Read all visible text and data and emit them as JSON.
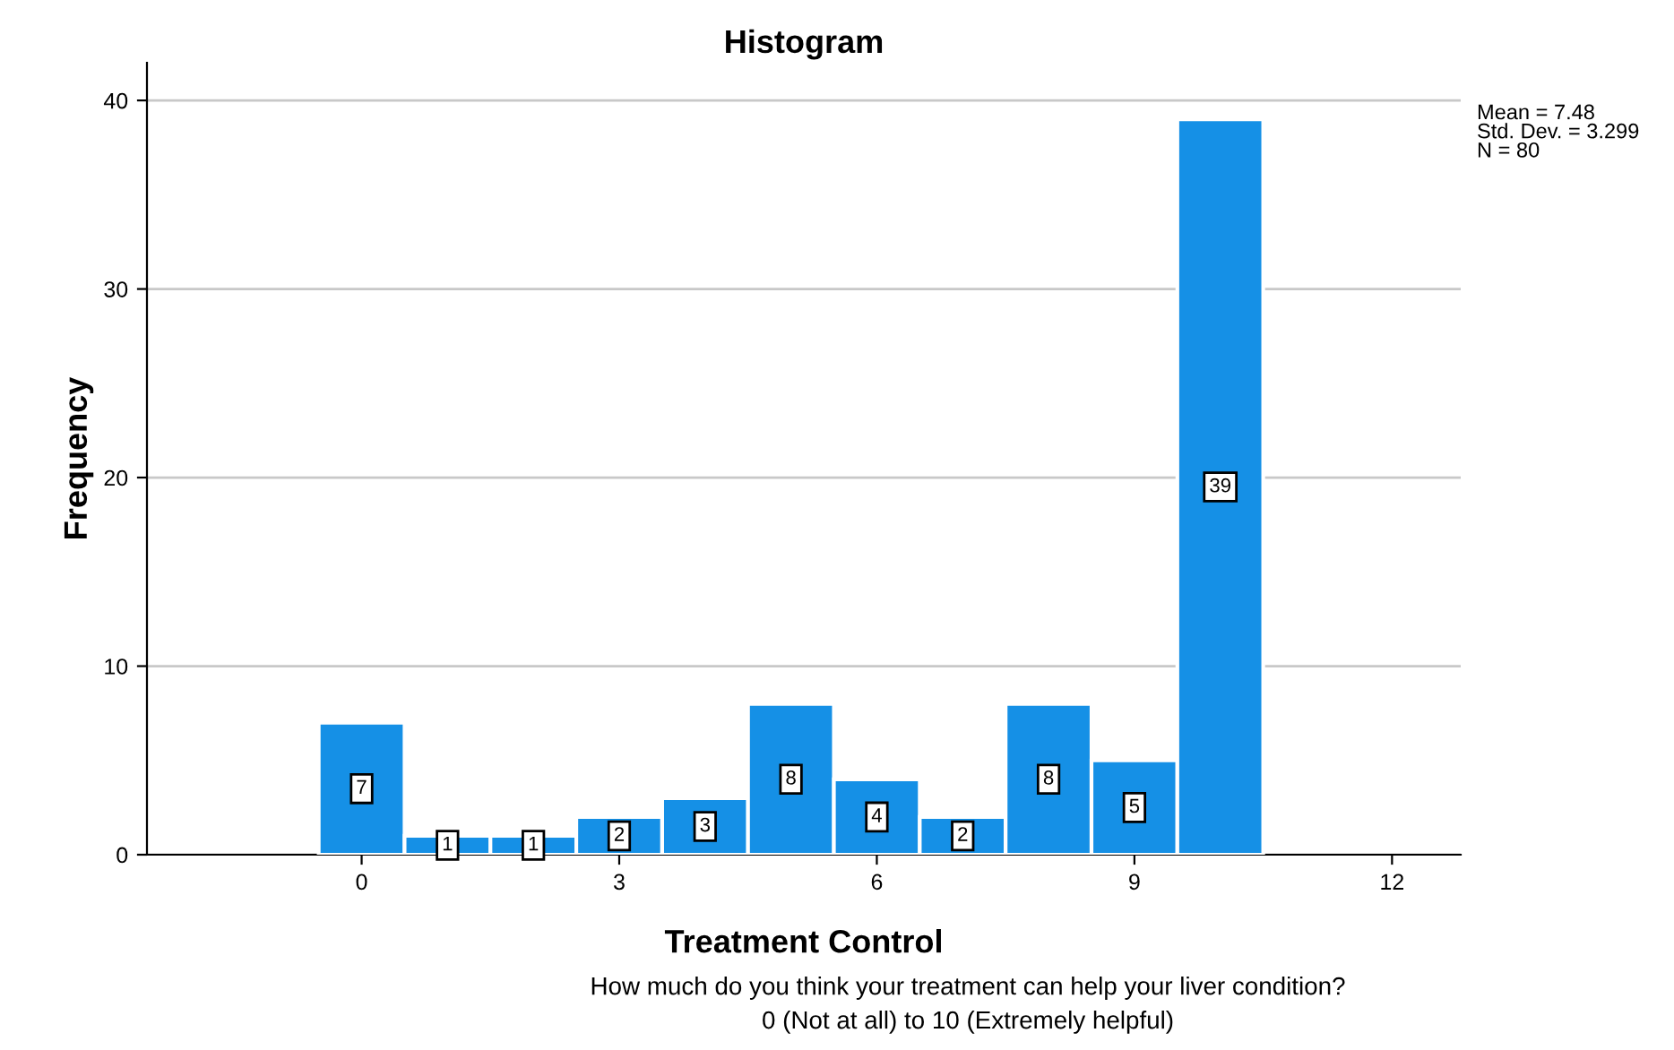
{
  "chart_data": {
    "type": "histogram",
    "title": "Histogram",
    "xlabel": "Treatment Control",
    "ylabel": "Frequency",
    "bins": [
      -0.5,
      0.5,
      1.5,
      2.5,
      3.5,
      4.5,
      5.5,
      6.5,
      7.5,
      8.5,
      9.5,
      10.5
    ],
    "values": [
      7,
      1,
      1,
      2,
      3,
      8,
      4,
      2,
      8,
      5,
      39
    ],
    "color": "#1590e6",
    "xlim": [
      -2.5,
      12.8
    ],
    "xticks": [
      0,
      3,
      6,
      9,
      12
    ],
    "ylim": [
      0,
      42
    ],
    "yticks": [
      0,
      10,
      20,
      30,
      40
    ],
    "grid": "y",
    "data_labels": true,
    "annotations": [
      "Mean = 7.48\nStd. Dev. = 3.299\nN = 80",
      "How much do you think your treatment can help your liver condition?\n0 (Not at all) to 10 (Extremely helpful)"
    ]
  }
}
